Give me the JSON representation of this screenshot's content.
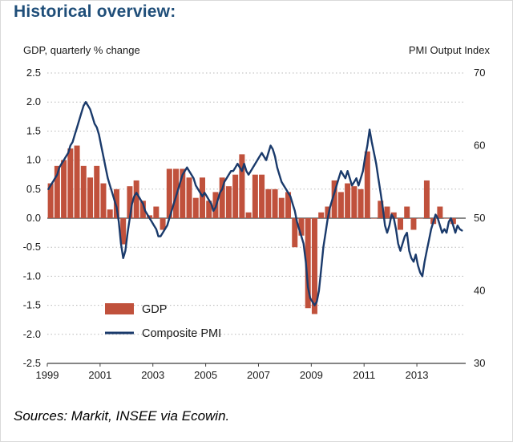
{
  "page": {
    "sources": "Sources: Markit, INSEE via Ecowin."
  },
  "chart_data": {
    "type": "combo",
    "title": "Historical overview:",
    "title_color": "#1f4e79",
    "left_axis": {
      "label": "GDP, quarterly % change",
      "min": -2.5,
      "max": 2.5,
      "ticks": [
        2.5,
        2.0,
        1.5,
        1.0,
        0.5,
        0.0,
        -0.5,
        -1.0,
        -1.5,
        -2.0,
        -2.5
      ]
    },
    "right_axis": {
      "label": "PMI Output Index",
      "min": 30,
      "max": 70,
      "ticks": [
        70,
        60,
        50,
        40,
        30
      ]
    },
    "x_axis": {
      "min": 1999,
      "max": 2014.85,
      "tick_years": [
        1999,
        2001,
        2003,
        2005,
        2007,
        2009,
        2011,
        2013
      ]
    },
    "grid": {
      "on": true,
      "color": "#b8b8b8",
      "zero_line_color": "#3f3f3f"
    },
    "legend": {
      "position": "inside-bottom-left",
      "entries": [
        "GDP",
        "Composite PMI"
      ]
    },
    "series": [
      {
        "name": "GDP",
        "type": "bar",
        "color": "#c0513c",
        "start_year": 1999,
        "frequency": "quarterly",
        "values": [
          0.6,
          0.9,
          1.0,
          1.2,
          1.25,
          0.9,
          0.7,
          0.9,
          0.6,
          0.15,
          0.5,
          -0.45,
          0.55,
          0.65,
          0.3,
          0.05,
          0.2,
          -0.2,
          0.85,
          0.85,
          0.85,
          0.7,
          0.35,
          0.7,
          0.3,
          0.45,
          0.7,
          0.55,
          0.75,
          1.1,
          0.1,
          0.75,
          0.75,
          0.5,
          0.5,
          0.35,
          0.45,
          -0.5,
          -0.3,
          -1.55,
          -1.65,
          0.1,
          0.2,
          0.65,
          0.45,
          0.6,
          0.55,
          0.5,
          1.15,
          0.0,
          0.3,
          0.2,
          0.1,
          -0.2,
          0.2,
          -0.2,
          0.0,
          0.65,
          -0.1,
          0.2,
          0.0,
          -0.1
        ]
      },
      {
        "name": "Composite PMI",
        "type": "line",
        "color": "#1a3a6b",
        "stroke_width": 2.4,
        "start_year": 1999,
        "frequency": "monthly",
        "values": [
          54.0,
          54.5,
          55.0,
          55.5,
          56.0,
          57.0,
          57.5,
          58.0,
          58.5,
          59.0,
          60.0,
          60.5,
          61.5,
          62.5,
          63.5,
          64.5,
          65.5,
          66.0,
          65.5,
          65.0,
          64.0,
          63.0,
          62.5,
          61.5,
          60.0,
          58.5,
          57.0,
          55.5,
          54.5,
          53.5,
          52.5,
          51.5,
          49.5,
          46.5,
          44.5,
          45.5,
          48.0,
          50.0,
          52.0,
          53.0,
          53.5,
          53.0,
          52.5,
          52.0,
          51.0,
          50.5,
          50.0,
          49.5,
          49.0,
          48.5,
          47.5,
          47.5,
          48.0,
          48.5,
          49.0,
          50.0,
          51.0,
          52.0,
          53.0,
          54.0,
          55.0,
          56.0,
          56.5,
          57.0,
          56.5,
          56.0,
          55.5,
          54.5,
          54.0,
          53.5,
          53.0,
          53.5,
          53.0,
          52.5,
          52.0,
          51.0,
          51.5,
          52.5,
          53.5,
          54.0,
          55.0,
          55.5,
          56.0,
          56.5,
          56.5,
          57.0,
          57.5,
          57.0,
          56.5,
          57.5,
          56.5,
          56.0,
          56.5,
          57.0,
          57.5,
          58.0,
          58.5,
          59.0,
          58.5,
          58.0,
          59.0,
          60.0,
          59.5,
          58.5,
          57.0,
          56.0,
          55.0,
          54.5,
          54.0,
          53.5,
          53.0,
          52.0,
          51.0,
          49.5,
          48.5,
          47.5,
          46.5,
          44.0,
          40.5,
          39.0,
          38.5,
          38.0,
          38.5,
          40.0,
          43.0,
          46.0,
          48.0,
          50.0,
          51.5,
          52.5,
          53.5,
          54.5,
          55.5,
          56.5,
          56.0,
          55.5,
          56.5,
          55.5,
          54.5,
          55.0,
          55.5,
          54.5,
          55.5,
          56.5,
          58.5,
          60.0,
          62.2,
          60.5,
          59.0,
          57.5,
          55.5,
          53.5,
          51.5,
          49.0,
          48.0,
          49.0,
          50.5,
          50.0,
          48.5,
          46.5,
          45.5,
          46.5,
          47.5,
          48.0,
          45.5,
          44.5,
          44.0,
          45.0,
          43.5,
          42.5,
          42.0,
          44.0,
          45.5,
          47.0,
          48.5,
          49.5,
          50.5,
          50.0,
          49.0,
          48.0,
          48.5,
          48.0,
          49.5,
          50.0,
          49.0,
          48.0,
          49.0,
          48.5,
          48.3
        ]
      }
    ]
  }
}
